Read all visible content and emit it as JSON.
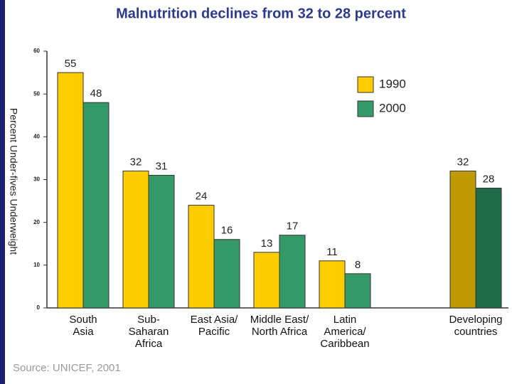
{
  "chart_data": {
    "type": "bar",
    "title": "Malnutrition declines from 32 to 28 percent",
    "y_label": "Percent Under-fives Underweight",
    "source": "Source: UNICEF, 2001",
    "categories": [
      "South\nAsia",
      "Sub-\nSaharan\nAfrica",
      "East Asia/\nPacific",
      "Middle East/\nNorth Africa",
      "Latin\nAmerica/\nCaribbean",
      null,
      "Developing\ncountries"
    ],
    "series": [
      {
        "name": "1990",
        "color": "#ffcc00",
        "colors": [
          "#ffcc00",
          "#ffcc00",
          "#ffcc00",
          "#ffcc00",
          "#ffcc00",
          null,
          "#bf9a00"
        ],
        "values": [
          55,
          32,
          24,
          13,
          11,
          null,
          32
        ]
      },
      {
        "name": "2000",
        "color": "#339966",
        "colors": [
          "#339966",
          "#339966",
          "#339966",
          "#339966",
          "#339966",
          null,
          "#1f6b47"
        ],
        "values": [
          48,
          31,
          16,
          17,
          8,
          null,
          28
        ]
      }
    ],
    "ylim": [
      0,
      60
    ],
    "yticks": [
      0,
      10,
      20,
      30,
      40,
      50,
      60
    ],
    "grid": false,
    "legend": "top-right"
  }
}
